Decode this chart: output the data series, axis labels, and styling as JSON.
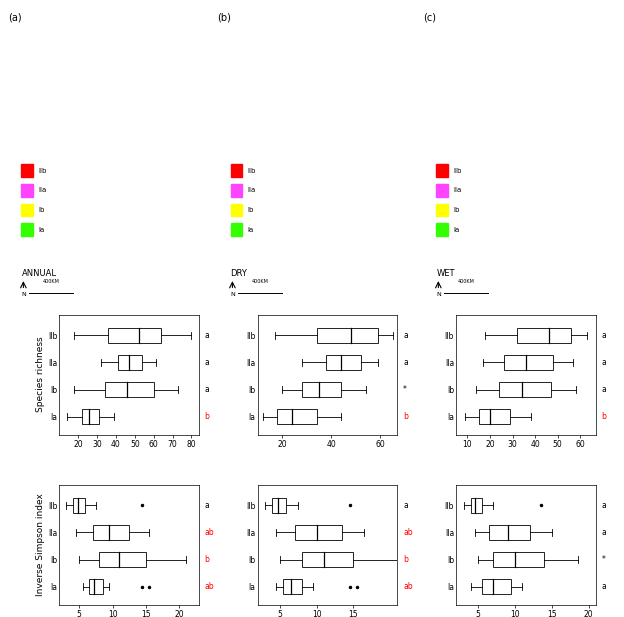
{
  "species_richness": {
    "annual": {
      "IIb": {
        "wl": 18,
        "q1": 36,
        "med": 52,
        "q3": 64,
        "wh": 80
      },
      "IIa": {
        "wl": 32,
        "q1": 41,
        "med": 47,
        "q3": 54,
        "wh": 61
      },
      "Ib": {
        "wl": 18,
        "q1": 34,
        "med": 46,
        "q3": 60,
        "wh": 73
      },
      "Ia": {
        "wl": 14,
        "q1": 22,
        "med": 26,
        "q3": 31,
        "wh": 39
      }
    },
    "dry": {
      "IIb": {
        "wl": 17,
        "q1": 34,
        "med": 48,
        "q3": 59,
        "wh": 65
      },
      "IIa": {
        "wl": 28,
        "q1": 38,
        "med": 44,
        "q3": 52,
        "wh": 59
      },
      "Ib": {
        "wl": 20,
        "q1": 28,
        "med": 35,
        "q3": 44,
        "wh": 54
      },
      "Ia": {
        "wl": 12,
        "q1": 18,
        "med": 24,
        "q3": 34,
        "wh": 44
      }
    },
    "wet": {
      "IIb": {
        "wl": 18,
        "q1": 32,
        "med": 46,
        "q3": 56,
        "wh": 63
      },
      "IIa": {
        "wl": 17,
        "q1": 26,
        "med": 36,
        "q3": 48,
        "wh": 57
      },
      "Ib": {
        "wl": 14,
        "q1": 24,
        "med": 34,
        "q3": 47,
        "wh": 58
      },
      "Ia": {
        "wl": 9,
        "q1": 15,
        "med": 20,
        "q3": 29,
        "wh": 38
      }
    }
  },
  "inverse_simpson": {
    "annual": {
      "IIb": {
        "wl": 3.0,
        "q1": 4.0,
        "med": 4.8,
        "q3": 5.8,
        "wh": 7.5,
        "outliers": [
          14.5
        ]
      },
      "IIa": {
        "wl": 4.5,
        "q1": 7.0,
        "med": 9.5,
        "q3": 12.5,
        "wh": 15.5,
        "outliers": []
      },
      "Ib": {
        "wl": 5.0,
        "q1": 8.0,
        "med": 11.0,
        "q3": 15.0,
        "wh": 21.0,
        "outliers": []
      },
      "Ia": {
        "wl": 5.5,
        "q1": 6.5,
        "med": 7.2,
        "q3": 8.5,
        "wh": 9.5,
        "outliers": [
          14.5,
          15.5
        ]
      }
    },
    "dry": {
      "IIb": {
        "wl": 3.0,
        "q1": 4.0,
        "med": 4.8,
        "q3": 5.8,
        "wh": 7.5,
        "outliers": [
          14.5
        ]
      },
      "IIa": {
        "wl": 4.5,
        "q1": 7.0,
        "med": 10.0,
        "q3": 13.5,
        "wh": 16.5,
        "outliers": []
      },
      "Ib": {
        "wl": 5.0,
        "q1": 8.0,
        "med": 11.0,
        "q3": 15.0,
        "wh": 21.0,
        "outliers": []
      },
      "Ia": {
        "wl": 4.5,
        "q1": 5.5,
        "med": 6.5,
        "q3": 8.0,
        "wh": 9.5,
        "outliers": [
          14.5,
          15.5
        ]
      }
    },
    "wet": {
      "IIb": {
        "wl": 3.0,
        "q1": 4.0,
        "med": 4.5,
        "q3": 5.5,
        "wh": 7.0,
        "outliers": [
          13.5
        ]
      },
      "IIa": {
        "wl": 4.5,
        "q1": 6.5,
        "med": 9.0,
        "q3": 12.0,
        "wh": 15.0,
        "outliers": []
      },
      "Ib": {
        "wl": 5.0,
        "q1": 7.0,
        "med": 10.0,
        "q3": 14.0,
        "wh": 18.5,
        "outliers": []
      },
      "Ia": {
        "wl": 4.0,
        "q1": 5.5,
        "med": 7.0,
        "q3": 9.5,
        "wh": 11.0,
        "outliers": []
      }
    }
  },
  "sr_configs": {
    "annual": {
      "xlim": [
        10,
        84
      ],
      "xticks": [
        20,
        30,
        40,
        50,
        60,
        70,
        80
      ]
    },
    "dry": {
      "xlim": [
        10,
        67
      ],
      "xticks": [
        20,
        40,
        60
      ]
    },
    "wet": {
      "xlim": [
        5,
        67
      ],
      "xticks": [
        10,
        20,
        30,
        40,
        50,
        60
      ]
    }
  },
  "is_configs": {
    "annual": {
      "xlim": [
        2,
        23
      ],
      "xticks": [
        5,
        10,
        15,
        20
      ]
    },
    "dry": {
      "xlim": [
        2,
        21
      ],
      "xticks": [
        5,
        10,
        15
      ]
    },
    "wet": {
      "xlim": [
        2,
        21
      ],
      "xticks": [
        5,
        10,
        15,
        20
      ]
    }
  },
  "sr_right_labels": {
    "annual": {
      "IIb": [
        "a",
        "black"
      ],
      "IIa": [
        "a",
        "black"
      ],
      "Ib": [
        "a",
        "black"
      ],
      "Ia": [
        "b",
        "red"
      ]
    },
    "dry": {
      "IIb": [
        "a",
        "black"
      ],
      "IIa": [
        "a",
        "black"
      ],
      "Ib": [
        "*",
        "black"
      ],
      "Ia": [
        "b",
        "red"
      ]
    },
    "wet": {
      "IIb": [
        "a",
        "black"
      ],
      "IIa": [
        "a",
        "black"
      ],
      "Ib": [
        "a",
        "black"
      ],
      "Ia": [
        "b",
        "red"
      ]
    }
  },
  "is_right_labels": {
    "annual": {
      "IIb": [
        "a",
        "black"
      ],
      "IIa": [
        "ab",
        "red"
      ],
      "Ib": [
        "b",
        "red"
      ],
      "Ia": [
        "ab",
        "red"
      ]
    },
    "dry": {
      "IIb": [
        "a",
        "black"
      ],
      "IIa": [
        "ab",
        "red"
      ],
      "Ib": [
        "b",
        "red"
      ],
      "Ia": [
        "ab",
        "red"
      ]
    },
    "wet": {
      "IIb": [
        "a",
        "black"
      ],
      "IIa": [
        "a",
        "black"
      ],
      "Ib": [
        "*",
        "black"
      ],
      "Ia": [
        "a",
        "black"
      ]
    }
  },
  "categories": [
    "IIb",
    "IIa",
    "Ib",
    "Ia"
  ],
  "seasons": [
    "annual",
    "dry",
    "wet"
  ],
  "map_labels": [
    "(a)",
    "(b)",
    "(c)"
  ],
  "map_titles": [
    "ANNUAL",
    "DRY",
    "WET"
  ],
  "legend_items": [
    {
      "label": "Ia",
      "color": "#33ff00"
    },
    {
      "label": "Ib",
      "color": "#ffff00"
    },
    {
      "label": "IIa",
      "color": "#ff44ff"
    },
    {
      "label": "IIb",
      "color": "#ff0000"
    }
  ]
}
